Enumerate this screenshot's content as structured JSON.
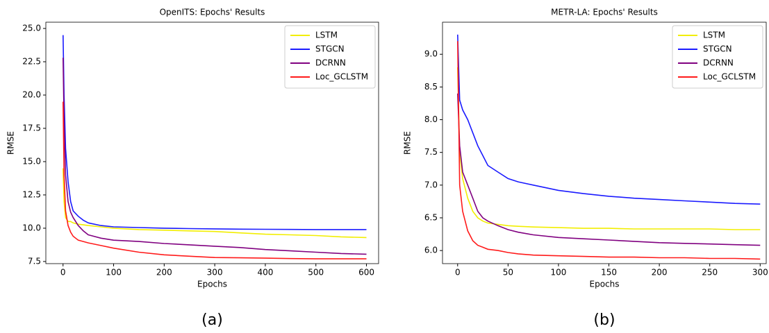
{
  "chart_data": [
    {
      "type": "line",
      "title": "OpenITS: Epochs' Results",
      "xlabel": "Epochs",
      "ylabel": "RMSE",
      "caption": "(a)",
      "x": [
        0,
        2,
        5,
        10,
        15,
        20,
        30,
        40,
        50,
        75,
        100,
        150,
        200,
        250,
        300,
        350,
        400,
        450,
        500,
        550,
        600
      ],
      "series": [
        {
          "name": "LSTM",
          "color": "#f2ee00",
          "values": [
            14.5,
            12,
            10.8,
            10.5,
            10.5,
            10.4,
            10.3,
            10.25,
            10.2,
            10.1,
            10.0,
            9.9,
            9.85,
            9.8,
            9.75,
            9.65,
            9.55,
            9.5,
            9.45,
            9.35,
            9.3
          ]
        },
        {
          "name": "STGCN",
          "color": "#1a1aff",
          "values": [
            24.5,
            20,
            16,
            13.5,
            12,
            11.3,
            10.9,
            10.6,
            10.4,
            10.2,
            10.1,
            10.05,
            10.0,
            9.97,
            9.95,
            9.93,
            9.92,
            9.91,
            9.9,
            9.9,
            9.9
          ]
        },
        {
          "name": "DCRNN",
          "color": "#800080",
          "values": [
            22.8,
            18,
            14,
            12,
            11.2,
            10.8,
            10.2,
            9.8,
            9.5,
            9.25,
            9.1,
            9.0,
            8.85,
            8.75,
            8.65,
            8.55,
            8.4,
            8.3,
            8.2,
            8.1,
            8.05
          ]
        },
        {
          "name": "Loc_GCLSTM",
          "color": "#ff1a1a",
          "values": [
            19.5,
            14,
            11.3,
            10.2,
            9.7,
            9.4,
            9.1,
            9.0,
            8.9,
            8.7,
            8.5,
            8.2,
            8.0,
            7.9,
            7.8,
            7.78,
            7.75,
            7.72,
            7.7,
            7.7,
            7.7
          ]
        }
      ],
      "xlim": [
        -34,
        624
      ],
      "ylim": [
        7.34,
        25.47
      ],
      "xticks": [
        0,
        100,
        200,
        300,
        400,
        500,
        600
      ],
      "yticks": [
        7.5,
        {
          "value": 10,
          "label": "10.0"
        },
        12.5,
        {
          "value": 15,
          "label": "15.0"
        },
        17.5,
        {
          "value": 20,
          "label": "20.0"
        },
        22.5,
        {
          "value": 25,
          "label": "25.0"
        }
      ],
      "legend": "upper right"
    },
    {
      "type": "line",
      "title": "METR-LA: Epochs' Results",
      "xlabel": "Epochs",
      "ylabel": "RMSE",
      "caption": "(b)",
      "x": [
        0,
        2,
        5,
        10,
        15,
        20,
        25,
        30,
        40,
        50,
        60,
        75,
        100,
        125,
        150,
        175,
        200,
        225,
        250,
        275,
        300
      ],
      "series": [
        {
          "name": "LSTM",
          "color": "#f2ee00",
          "values": [
            8.8,
            7.5,
            7.1,
            6.8,
            6.6,
            6.5,
            6.45,
            6.42,
            6.4,
            6.38,
            6.37,
            6.36,
            6.35,
            6.34,
            6.34,
            6.33,
            6.33,
            6.33,
            6.33,
            6.32,
            6.32
          ]
        },
        {
          "name": "STGCN",
          "color": "#1a1aff",
          "values": [
            9.3,
            8.3,
            8.15,
            8.0,
            7.8,
            7.6,
            7.45,
            7.3,
            7.2,
            7.1,
            7.05,
            7.0,
            6.92,
            6.87,
            6.83,
            6.8,
            6.78,
            6.76,
            6.74,
            6.72,
            6.71
          ]
        },
        {
          "name": "DCRNN",
          "color": "#800080",
          "values": [
            8.4,
            7.6,
            7.2,
            7.0,
            6.8,
            6.6,
            6.5,
            6.45,
            6.38,
            6.32,
            6.28,
            6.24,
            6.2,
            6.18,
            6.16,
            6.14,
            6.12,
            6.11,
            6.1,
            6.09,
            6.08
          ]
        },
        {
          "name": "Loc_GCLSTM",
          "color": "#ff1a1a",
          "values": [
            9.2,
            7.0,
            6.6,
            6.3,
            6.15,
            6.08,
            6.05,
            6.02,
            6.0,
            5.97,
            5.95,
            5.93,
            5.92,
            5.91,
            5.9,
            5.9,
            5.89,
            5.89,
            5.88,
            5.88,
            5.87
          ]
        }
      ],
      "xlim": [
        -15,
        306
      ],
      "ylim": [
        5.8,
        9.49
      ],
      "xticks": [
        0,
        50,
        100,
        150,
        200,
        250,
        300
      ],
      "yticks": [
        {
          "value": 6,
          "label": "6.0"
        },
        6.5,
        {
          "value": 7,
          "label": "7.0"
        },
        7.5,
        {
          "value": 8,
          "label": "8.0"
        },
        8.5,
        {
          "value": 9,
          "label": "9.0"
        }
      ],
      "legend": "upper right"
    }
  ]
}
